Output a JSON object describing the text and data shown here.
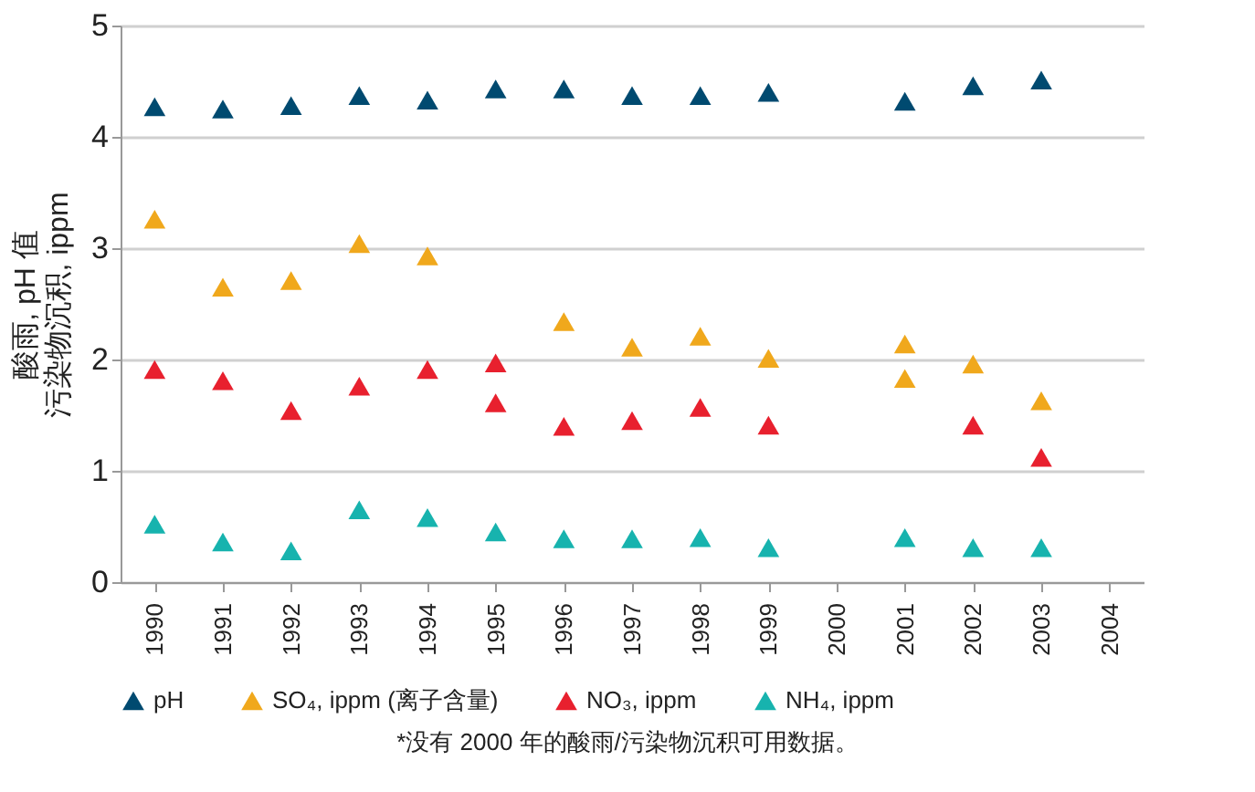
{
  "chart_data": {
    "type": "scatter",
    "ylabel": "酸雨, pH 值污染物沉积, ippm",
    "marker": "triangle",
    "legend": "bottom",
    "grid": "y",
    "xlim": [
      1989.5,
      2004.5
    ],
    "xticks": [
      1990,
      1991,
      1992,
      1993,
      1994,
      1995,
      1996,
      1997,
      1998,
      1999,
      2000,
      2001,
      2002,
      2003,
      2004
    ],
    "ylim": [
      0,
      5
    ],
    "yticks": [
      0,
      1,
      2,
      3,
      4,
      5
    ],
    "series": [
      {
        "name": "pH",
        "color": "#004a70",
        "x": [
          1990,
          1991,
          1992,
          1993,
          1994,
          1995,
          1996,
          1997,
          1998,
          1999,
          2001,
          2002,
          2003
        ],
        "values": [
          4.27,
          4.25,
          4.28,
          4.37,
          4.33,
          4.43,
          4.43,
          4.37,
          4.37,
          4.4,
          4.32,
          4.46,
          4.51
        ]
      },
      {
        "name": "SO₄, ippm (离子含量)",
        "color": "#f0a81c",
        "x": [
          1990,
          1991,
          1992,
          1993,
          1994,
          1996,
          1997,
          1998,
          1999,
          2001,
          2001,
          2002,
          2003
        ],
        "values": [
          3.26,
          2.65,
          2.71,
          3.04,
          2.93,
          2.34,
          2.11,
          2.21,
          2.01,
          2.14,
          1.83,
          1.96,
          1.63
        ]
      },
      {
        "name": "NO₃, ippm",
        "color": "#e8202e",
        "x": [
          1990,
          1991,
          1992,
          1993,
          1994,
          1995,
          1995,
          1996,
          1997,
          1998,
          1999,
          2002,
          2003
        ],
        "values": [
          1.91,
          1.81,
          1.54,
          1.76,
          1.91,
          1.97,
          1.61,
          1.4,
          1.45,
          1.57,
          1.41,
          1.41,
          1.12
        ]
      },
      {
        "name": "NH₄, ippm",
        "color": "#17b3ae",
        "x": [
          1990,
          1991,
          1992,
          1993,
          1994,
          1995,
          1996,
          1997,
          1998,
          1999,
          2001,
          2002,
          2003
        ],
        "values": [
          0.52,
          0.36,
          0.28,
          0.65,
          0.58,
          0.45,
          0.39,
          0.39,
          0.4,
          0.31,
          0.4,
          0.31,
          0.31
        ]
      }
    ],
    "annotations": [
      "*没有 2000 年的酸雨/污染物沉积可用数据。"
    ]
  }
}
